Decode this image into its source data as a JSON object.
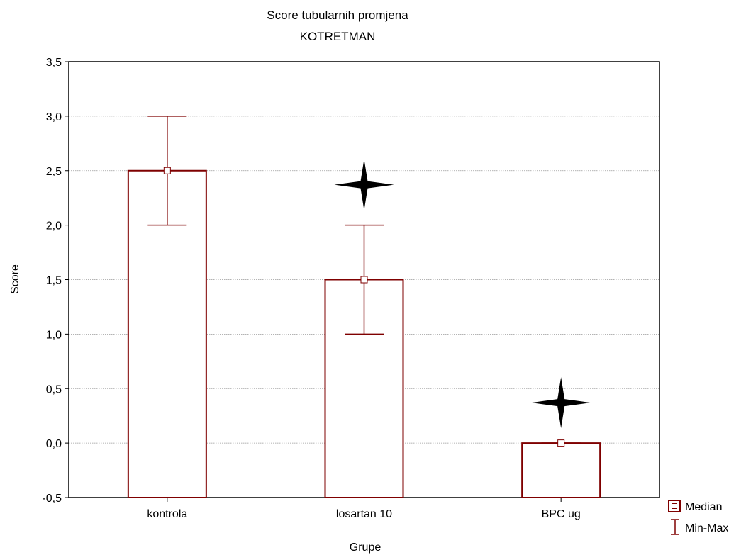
{
  "chart_data": {
    "type": "bar",
    "title": "Score tubularnih promjena",
    "subtitle": "KOTRETMAN",
    "xlabel": "Grupe",
    "ylabel": "Score",
    "categories": [
      "kontrola",
      "losartan 10",
      "BPC ug"
    ],
    "median": [
      2.5,
      1.5,
      0.0
    ],
    "min": [
      2.0,
      1.0,
      0.0
    ],
    "max": [
      3.0,
      2.0,
      0.0
    ],
    "significance_markers": [
      false,
      true,
      true
    ],
    "ylim": [
      -0.5,
      3.5
    ],
    "yticks": [
      "-0,5",
      "0,0",
      "0,5",
      "1,0",
      "1,5",
      "2,0",
      "2,5",
      "3,0",
      "3,5"
    ],
    "grid": "horizontal dashed",
    "legend": {
      "placement": "bottom-right",
      "entries": [
        {
          "label": "Median",
          "icon": "median-square-icon"
        },
        {
          "label": "Min-Max",
          "icon": "min-max-whisker-icon"
        }
      ]
    },
    "colors": {
      "bar": "#7f0000",
      "median_marker": "#7f0000",
      "star": "#000000"
    }
  }
}
